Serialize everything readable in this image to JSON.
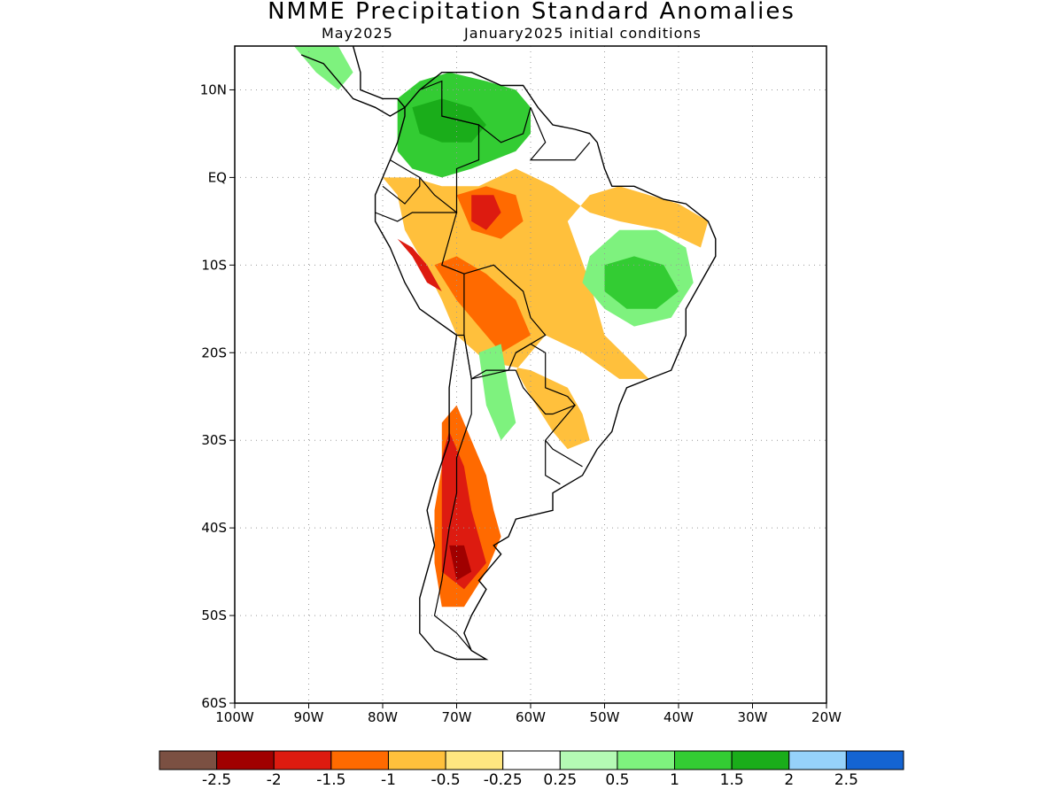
{
  "header": {
    "title": "NMME Precipitation Standard Anomalies",
    "target_month": "May2025",
    "initial_conditions": "January2025 initial conditions"
  },
  "map": {
    "lon_range": [
      -100,
      -20
    ],
    "lat_range": [
      -60,
      15
    ],
    "grid": true,
    "lat_ticks": [
      {
        "value": 10,
        "label": "10N"
      },
      {
        "value": 0,
        "label": "EQ"
      },
      {
        "value": -10,
        "label": "10S"
      },
      {
        "value": -20,
        "label": "20S"
      },
      {
        "value": -30,
        "label": "30S"
      },
      {
        "value": -40,
        "label": "40S"
      },
      {
        "value": -50,
        "label": "50S"
      },
      {
        "value": -60,
        "label": "60S"
      }
    ],
    "lon_ticks": [
      {
        "value": -100,
        "label": "100W"
      },
      {
        "value": -90,
        "label": "90W"
      },
      {
        "value": -80,
        "label": "80W"
      },
      {
        "value": -70,
        "label": "70W"
      },
      {
        "value": -60,
        "label": "60W"
      },
      {
        "value": -50,
        "label": "50W"
      },
      {
        "value": -40,
        "label": "40W"
      },
      {
        "value": -30,
        "label": "30W"
      },
      {
        "value": -20,
        "label": "20W"
      }
    ],
    "regions": [
      {
        "name": "nw-south-america-wet",
        "color": "#33cc33",
        "points": [
          [
            -78,
            9
          ],
          [
            -75,
            11
          ],
          [
            -71,
            12
          ],
          [
            -66,
            11
          ],
          [
            -62,
            10
          ],
          [
            -60,
            8
          ],
          [
            -60,
            5
          ],
          [
            -62,
            3
          ],
          [
            -65,
            2
          ],
          [
            -68,
            1
          ],
          [
            -72,
            0
          ],
          [
            -76,
            1
          ],
          [
            -78,
            3
          ],
          [
            -78,
            6
          ]
        ]
      },
      {
        "name": "nw-inner-wet",
        "color": "#1aad1a",
        "points": [
          [
            -76,
            8
          ],
          [
            -72,
            9
          ],
          [
            -68,
            8
          ],
          [
            -66,
            6
          ],
          [
            -68,
            4
          ],
          [
            -72,
            4
          ],
          [
            -75,
            5
          ]
        ]
      },
      {
        "name": "central-america-wet",
        "color": "#7ef27e",
        "points": [
          [
            -92,
            15
          ],
          [
            -86,
            15
          ],
          [
            -84,
            12
          ],
          [
            -86,
            10
          ],
          [
            -89,
            12
          ]
        ]
      },
      {
        "name": "amazon-dry",
        "color": "#ffc03c",
        "points": [
          [
            -80,
            0
          ],
          [
            -78,
            -2
          ],
          [
            -77,
            -6
          ],
          [
            -75,
            -9
          ],
          [
            -72,
            -14
          ],
          [
            -70,
            -18
          ],
          [
            -66,
            -21
          ],
          [
            -60,
            -22
          ],
          [
            -55,
            -24
          ],
          [
            -53,
            -27
          ],
          [
            -52,
            -30
          ],
          [
            -55,
            -31
          ],
          [
            -57,
            -29
          ],
          [
            -60,
            -25
          ],
          [
            -62,
            -22
          ],
          [
            -58,
            -18
          ],
          [
            -53,
            -20
          ],
          [
            -48,
            -23
          ],
          [
            -44,
            -23
          ],
          [
            -50,
            -18
          ],
          [
            -52,
            -12
          ],
          [
            -55,
            -5
          ],
          [
            -52,
            -2
          ],
          [
            -48,
            -1
          ],
          [
            -44,
            -2
          ],
          [
            -40,
            -3
          ],
          [
            -36,
            -5
          ],
          [
            -37,
            -8
          ],
          [
            -42,
            -6
          ],
          [
            -48,
            -5
          ],
          [
            -52,
            -4
          ],
          [
            -57,
            -1
          ],
          [
            -62,
            1
          ],
          [
            -67,
            -1
          ],
          [
            -72,
            -1
          ],
          [
            -76,
            0
          ]
        ]
      },
      {
        "name": "amazon-core-dry",
        "color": "#ff6a00",
        "points": [
          [
            -73,
            -10
          ],
          [
            -70,
            -14
          ],
          [
            -67,
            -17
          ],
          [
            -64,
            -20
          ],
          [
            -60,
            -18
          ],
          [
            -62,
            -14
          ],
          [
            -66,
            -11
          ],
          [
            -70,
            -9
          ]
        ]
      },
      {
        "name": "upper-amazon-dry",
        "color": "#ff6a00",
        "points": [
          [
            -70,
            -2
          ],
          [
            -66,
            -1
          ],
          [
            -62,
            -2
          ],
          [
            -61,
            -5
          ],
          [
            -64,
            -7
          ],
          [
            -68,
            -6
          ]
        ]
      },
      {
        "name": "upper-amazon-core",
        "color": "#dd1b10",
        "points": [
          [
            -68,
            -2
          ],
          [
            -65,
            -2
          ],
          [
            -64,
            -4
          ],
          [
            -66,
            -6
          ],
          [
            -68,
            -5
          ]
        ]
      },
      {
        "name": "peru-dry",
        "color": "#dd1b10",
        "points": [
          [
            -78,
            -7
          ],
          [
            -76,
            -9
          ],
          [
            -74,
            -12
          ],
          [
            -72,
            -13
          ],
          [
            -74,
            -10
          ],
          [
            -76,
            -8
          ]
        ]
      },
      {
        "name": "central-brazil-wet",
        "color": "#7ef27e",
        "points": [
          [
            -52,
            -9
          ],
          [
            -48,
            -6
          ],
          [
            -43,
            -6
          ],
          [
            -39,
            -8
          ],
          [
            -38,
            -12
          ],
          [
            -41,
            -16
          ],
          [
            -46,
            -17
          ],
          [
            -50,
            -15
          ],
          [
            -53,
            -12
          ]
        ]
      },
      {
        "name": "central-brazil-core",
        "color": "#33cc33",
        "points": [
          [
            -50,
            -10
          ],
          [
            -46,
            -9
          ],
          [
            -42,
            -10
          ],
          [
            -40,
            -13
          ],
          [
            -43,
            -15
          ],
          [
            -47,
            -15
          ],
          [
            -50,
            -13
          ]
        ]
      },
      {
        "name": "chile-argentina-dry",
        "color": "#ff6a00",
        "points": [
          [
            -72,
            -28
          ],
          [
            -70,
            -26
          ],
          [
            -68,
            -30
          ],
          [
            -66,
            -34
          ],
          [
            -65,
            -38
          ],
          [
            -64,
            -41
          ],
          [
            -66,
            -45
          ],
          [
            -69,
            -49
          ],
          [
            -72,
            -49
          ],
          [
            -73,
            -44
          ],
          [
            -73,
            -38
          ],
          [
            -72,
            -33
          ]
        ]
      },
      {
        "name": "chile-core-dry",
        "color": "#dd1b10",
        "points": [
          [
            -71,
            -29
          ],
          [
            -69,
            -33
          ],
          [
            -68,
            -38
          ],
          [
            -66,
            -44
          ],
          [
            -69,
            -47
          ],
          [
            -72,
            -45
          ],
          [
            -72,
            -38
          ],
          [
            -72,
            -32
          ]
        ]
      },
      {
        "name": "patagonia-extreme",
        "color": "#a00000",
        "points": [
          [
            -71,
            -42
          ],
          [
            -69,
            -42
          ],
          [
            -68,
            -45
          ],
          [
            -70,
            -46
          ]
        ]
      },
      {
        "name": "chaco-wet",
        "color": "#7ef27e",
        "points": [
          [
            -67,
            -20
          ],
          [
            -64,
            -19
          ],
          [
            -63,
            -24
          ],
          [
            -62,
            -28
          ],
          [
            -64,
            -30
          ],
          [
            -66,
            -26
          ]
        ]
      }
    ],
    "coastline": [
      [
        -77,
        8
      ],
      [
        -75,
        10
      ],
      [
        -72,
        12
      ],
      [
        -68,
        12
      ],
      [
        -64,
        10.5
      ],
      [
        -61,
        10.5
      ],
      [
        -59,
        8
      ],
      [
        -57,
        6
      ],
      [
        -54,
        5.5
      ],
      [
        -52,
        5
      ],
      [
        -51,
        4
      ],
      [
        -50,
        1
      ],
      [
        -49,
        -1
      ],
      [
        -46,
        -1
      ],
      [
        -42,
        -2.5
      ],
      [
        -39,
        -3
      ],
      [
        -36,
        -5
      ],
      [
        -35,
        -7
      ],
      [
        -35,
        -9
      ],
      [
        -37,
        -12
      ],
      [
        -39,
        -15
      ],
      [
        -39,
        -18
      ],
      [
        -40,
        -20
      ],
      [
        -41,
        -22
      ],
      [
        -44,
        -23
      ],
      [
        -47,
        -24
      ],
      [
        -48,
        -26
      ],
      [
        -49,
        -29
      ],
      [
        -51,
        -31
      ],
      [
        -53,
        -34
      ],
      [
        -55,
        -35
      ],
      [
        -57,
        -36
      ],
      [
        -57,
        -38
      ],
      [
        -62,
        -39
      ],
      [
        -63,
        -41
      ],
      [
        -65,
        -42
      ],
      [
        -64,
        -43
      ],
      [
        -66,
        -45
      ],
      [
        -67,
        -46
      ],
      [
        -66,
        -47
      ],
      [
        -68,
        -50
      ],
      [
        -69,
        -52
      ],
      [
        -68,
        -54
      ],
      [
        -66,
        -55
      ],
      [
        -70,
        -55
      ],
      [
        -73,
        -54
      ],
      [
        -75,
        -52
      ],
      [
        -75,
        -48
      ],
      [
        -74,
        -45
      ],
      [
        -73,
        -42
      ],
      [
        -74,
        -38
      ],
      [
        -73,
        -35
      ],
      [
        -71,
        -30
      ],
      [
        -71,
        -24
      ],
      [
        -70,
        -18
      ],
      [
        -75,
        -15
      ],
      [
        -77,
        -12
      ],
      [
        -79,
        -8
      ],
      [
        -81,
        -5
      ],
      [
        -81,
        -2
      ],
      [
        -80,
        0
      ],
      [
        -79,
        2
      ],
      [
        -78,
        4
      ],
      [
        -77,
        7
      ]
    ],
    "central_america": [
      [
        -92,
        15
      ],
      [
        -88,
        16
      ],
      [
        -84,
        15
      ],
      [
        -83,
        12
      ],
      [
        -83,
        10
      ],
      [
        -80,
        9
      ],
      [
        -78,
        9
      ],
      [
        -77,
        8
      ],
      [
        -79,
        7
      ],
      [
        -81,
        8
      ],
      [
        -84,
        9
      ],
      [
        -86,
        11
      ],
      [
        -88,
        13
      ],
      [
        -91,
        14
      ]
    ],
    "borders": [
      [
        [
          -75,
          10
        ],
        [
          -72,
          11
        ],
        [
          -72,
          7
        ],
        [
          -67,
          6
        ],
        [
          -67,
          2
        ],
        [
          -70,
          1
        ],
        [
          -70,
          -4
        ],
        [
          -73,
          -2
        ],
        [
          -75,
          0
        ],
        [
          -77,
          1
        ],
        [
          -79,
          2
        ]
      ],
      [
        [
          -72,
          7
        ],
        [
          -67,
          6
        ],
        [
          -64,
          4
        ],
        [
          -61,
          5
        ],
        [
          -60,
          8
        ]
      ],
      [
        [
          -60,
          8
        ],
        [
          -59,
          6
        ],
        [
          -58,
          4
        ],
        [
          -60,
          2
        ],
        [
          -57,
          2
        ],
        [
          -54,
          2
        ],
        [
          -52,
          4
        ]
      ],
      [
        [
          -80,
          -1
        ],
        [
          -77,
          -3
        ],
        [
          -75,
          -1
        ],
        [
          -75,
          0
        ]
      ],
      [
        [
          -81,
          -4
        ],
        [
          -78,
          -5
        ],
        [
          -76,
          -4
        ],
        [
          -73,
          -4
        ],
        [
          -70,
          -4
        ],
        [
          -72,
          -10
        ],
        [
          -69,
          -11
        ],
        [
          -69,
          -15
        ],
        [
          -69,
          -18
        ],
        [
          -70,
          -18
        ]
      ],
      [
        [
          -69,
          -11
        ],
        [
          -65,
          -10
        ],
        [
          -61,
          -13
        ],
        [
          -60,
          -16
        ],
        [
          -58,
          -18
        ],
        [
          -62,
          -20
        ],
        [
          -63,
          -22
        ],
        [
          -68,
          -23
        ],
        [
          -69,
          -18
        ]
      ],
      [
        [
          -62,
          -20
        ],
        [
          -60,
          -19
        ],
        [
          -58,
          -20
        ],
        [
          -58,
          -24
        ],
        [
          -55,
          -25
        ],
        [
          -54,
          -26
        ],
        [
          -57,
          -27
        ],
        [
          -58,
          -27
        ],
        [
          -61,
          -24
        ],
        [
          -62,
          -22
        ]
      ],
      [
        [
          -68,
          -23
        ],
        [
          -66,
          -22
        ],
        [
          -64,
          -22
        ],
        [
          -62,
          -22
        ]
      ],
      [
        [
          -69,
          -18
        ],
        [
          -68,
          -23
        ],
        [
          -68,
          -27
        ],
        [
          -70,
          -32
        ],
        [
          -70,
          -36
        ],
        [
          -71,
          -40
        ],
        [
          -72,
          -46
        ],
        [
          -73,
          -50
        ],
        [
          -70,
          -52
        ],
        [
          -68,
          -54
        ]
      ],
      [
        [
          -54,
          -26
        ],
        [
          -56,
          -28
        ],
        [
          -58,
          -30
        ],
        [
          -57,
          -31
        ],
        [
          -53,
          -33
        ]
      ],
      [
        [
          -58,
          -30
        ],
        [
          -58,
          -34
        ],
        [
          -56,
          -35
        ]
      ]
    ]
  },
  "colorbar": {
    "colors": [
      "#7b5042",
      "#a00000",
      "#dd1b10",
      "#ff6a00",
      "#ffc03c",
      "#ffe680",
      "#ffffff",
      "#b4fab4",
      "#7ef27e",
      "#33cc33",
      "#1aad1a",
      "#96d2fa",
      "#1464d2"
    ],
    "labels": [
      "-2.5",
      "-2",
      "-1.5",
      "-1",
      "-0.5",
      "-0.25",
      "0.25",
      "0.5",
      "1",
      "1.5",
      "2",
      "2.5"
    ]
  }
}
